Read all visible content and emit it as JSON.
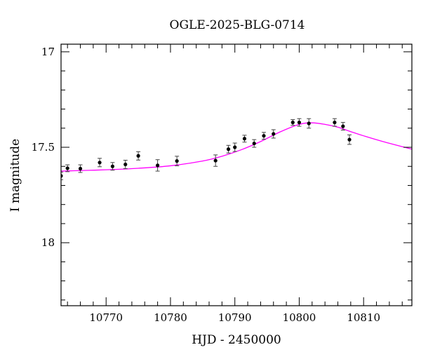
{
  "chart_data": {
    "type": "scatter",
    "title": "OGLE-2025-BLG-0714",
    "xlabel": "HJD - 2450000",
    "ylabel": "I magnitude",
    "xlim": [
      10763,
      10817.5
    ],
    "ylim": [
      18.33,
      16.96
    ],
    "y_inverted": true,
    "x_ticks": [
      10770,
      10780,
      10790,
      10800,
      10810
    ],
    "y_ticks": [
      17,
      17.5,
      18
    ],
    "y_tick_labels": [
      "17",
      "17.5",
      "18"
    ],
    "grid": false,
    "colors": {
      "points": "#000000",
      "model": "#ff00ff",
      "frame": "#000000"
    },
    "series": [
      {
        "kind": "points_with_errorbars",
        "x": [
          10763.0,
          10764.0,
          10766.0,
          10769.0,
          10771.0,
          10773.0,
          10775.0,
          10778.0,
          10781.0,
          10787.0,
          10789.0,
          10790.0,
          10791.5,
          10793.0,
          10794.5,
          10796.0,
          10799.0,
          10800.0,
          10801.5,
          10805.5,
          10806.8,
          10807.8
        ],
        "y": [
          17.65,
          17.61,
          17.612,
          17.58,
          17.6,
          17.59,
          17.545,
          17.595,
          17.572,
          17.57,
          17.51,
          17.5,
          17.455,
          17.48,
          17.44,
          17.43,
          17.37,
          17.37,
          17.375,
          17.37,
          17.39,
          17.46
        ],
        "err": [
          0.02,
          0.018,
          0.02,
          0.022,
          0.02,
          0.022,
          0.022,
          0.03,
          0.025,
          0.03,
          0.02,
          0.022,
          0.018,
          0.02,
          0.018,
          0.022,
          0.015,
          0.02,
          0.025,
          0.02,
          0.02,
          0.025
        ]
      },
      {
        "kind": "model_curve",
        "x": [
          10763,
          10765,
          10770,
          10775,
          10780,
          10785,
          10788,
          10791,
          10794,
          10797,
          10800,
          10802,
          10804,
          10806,
          10808,
          10810,
          10813,
          10817.5
        ],
        "y": [
          17.625,
          17.623,
          17.618,
          17.61,
          17.597,
          17.572,
          17.547,
          17.513,
          17.47,
          17.42,
          17.38,
          17.372,
          17.38,
          17.395,
          17.418,
          17.44,
          17.47,
          17.51
        ]
      }
    ]
  }
}
